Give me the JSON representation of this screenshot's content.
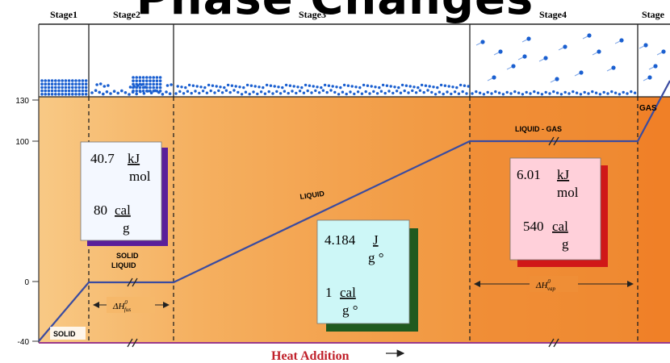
{
  "overlay_title": "Phase Changes",
  "stages": [
    "Stage1",
    "Stage2",
    "Stage3",
    "Stage4",
    "Stage"
  ],
  "y_ticks": [
    "130",
    "100",
    "0",
    "-40"
  ],
  "curve_labels": {
    "solid": "SOLID",
    "solid_liquid_1": "SOLID",
    "solid_liquid_2": "LIQUID",
    "liquid": "LIQUID",
    "liquid_gas": "LIQUID - GAS",
    "gas": "GAS"
  },
  "delta_fus": {
    "base": "ΔH",
    "sup": "0",
    "sub": "fus"
  },
  "delta_vap": {
    "base": "ΔH",
    "sup": "0",
    "sub": "vap"
  },
  "x_axis_label": "Heat Addition",
  "box_fus": {
    "value1": "40.7",
    "unit1_num": "kJ",
    "unit1_den": "mol",
    "value2": "80",
    "unit2_num": "cal",
    "unit2_den": "g"
  },
  "box_liquid": {
    "value1": "4.184",
    "unit1_num": "J",
    "unit1_den": "g °",
    "value2": "1",
    "unit2_num": "cal",
    "unit2_den": "g °"
  },
  "box_vap": {
    "value1": "6.01",
    "unit1_num": "kJ",
    "unit1_den": "mol",
    "value2": "540",
    "unit2_num": "cal",
    "unit2_den": "g"
  },
  "colors": {
    "curve": "#3a4ba0",
    "particle": "#1a5fd0",
    "bg_solid": "#f7c27a",
    "bg_liquid": "#f2a04a",
    "bg_vap": "#ee8a2e",
    "box_fus_fill": "#f4f8ff",
    "box_fus_shadow": "#5a1e9a",
    "box_liquid_fill": "#cdf7f7",
    "box_liquid_shadow": "#1f5a1f",
    "box_vap_fill": "#ffd0da",
    "box_vap_shadow": "#d01818"
  }
}
